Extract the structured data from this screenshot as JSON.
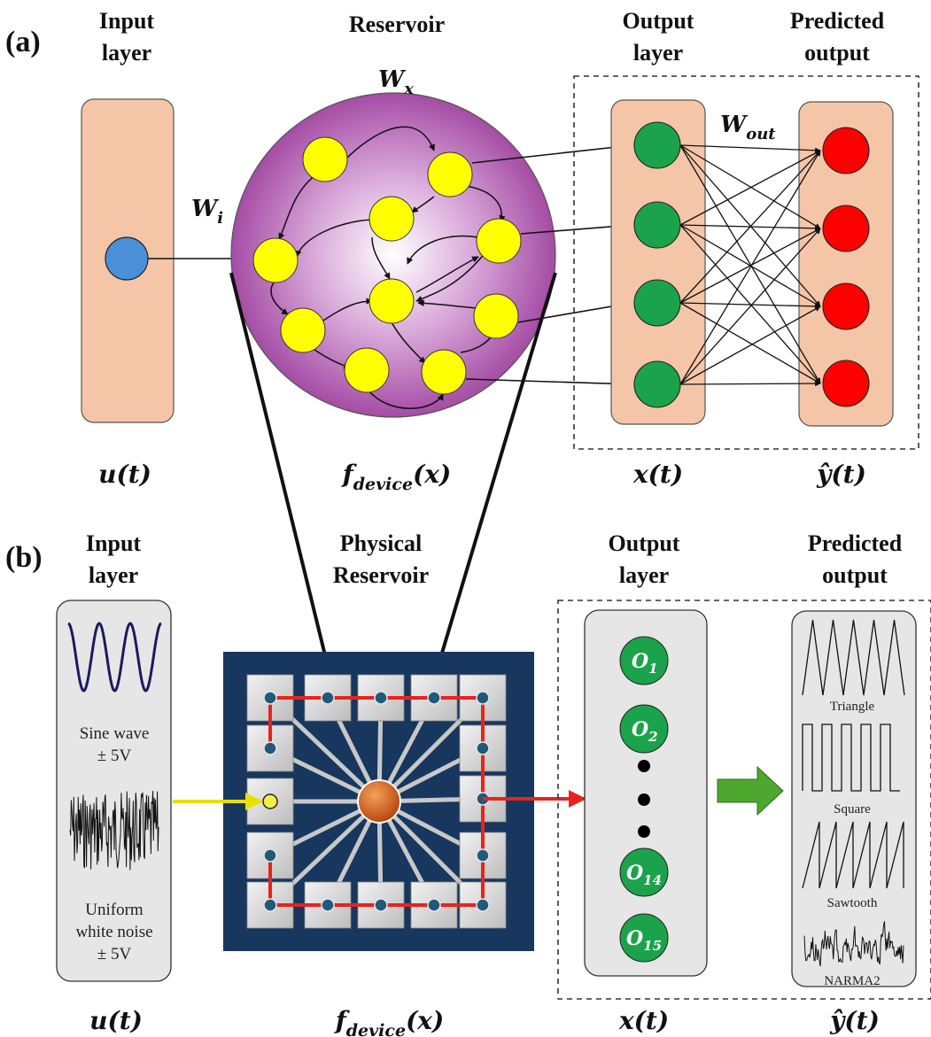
{
  "panel_a": {
    "tag": "(a)",
    "input_title": [
      "Input",
      "layer"
    ],
    "reservoir_title": "Reservoir",
    "output_title": [
      "Output",
      "layer"
    ],
    "predicted_title": [
      "Predicted",
      "output"
    ],
    "weights": {
      "w_x": {
        "base": "W",
        "sub": "x"
      },
      "w_i": {
        "base": "W",
        "sub": "i"
      },
      "w_out": {
        "base": "W",
        "sub": "out"
      }
    },
    "bottom": {
      "u": "u(t)",
      "f": {
        "base": "f",
        "sub": "device",
        "tail": "(x)"
      },
      "x": "x(t)",
      "y": "ŷ(t)"
    }
  },
  "panel_b": {
    "tag": "(b)",
    "input_title": [
      "Input",
      "layer"
    ],
    "physical_title": [
      "Physical",
      "Reservoir"
    ],
    "output_title": [
      "Output",
      "layer"
    ],
    "predicted_title": [
      "Predicted",
      "output"
    ],
    "sine_label": [
      "Sine wave",
      "± 5V"
    ],
    "noise_label": [
      "Uniform",
      "white noise",
      "± 5V"
    ],
    "outputs": [
      {
        "base": "O",
        "sub": "1"
      },
      {
        "base": "O",
        "sub": "2"
      },
      {
        "base": "O",
        "sub": "14"
      },
      {
        "base": "O",
        "sub": "15"
      }
    ],
    "waveforms": [
      "Triangle",
      "Square",
      "Sawtooth",
      "NARMA2"
    ],
    "bottom": {
      "u": "u(t)",
      "f": {
        "base": "f",
        "sub": "device",
        "tail": "(x)"
      },
      "x": "x(t)",
      "y": "ŷ(t)"
    }
  },
  "colors": {
    "input_node": "#4a90d9",
    "reservoir_node": "#ffff00",
    "output_node": "#1aa34a",
    "predicted_node": "#ff0000",
    "layer_fill": "#f5c5a8",
    "chip_bg": "#17375e",
    "red_path": "#e8231d",
    "green_arrow": "#4ea72e"
  }
}
